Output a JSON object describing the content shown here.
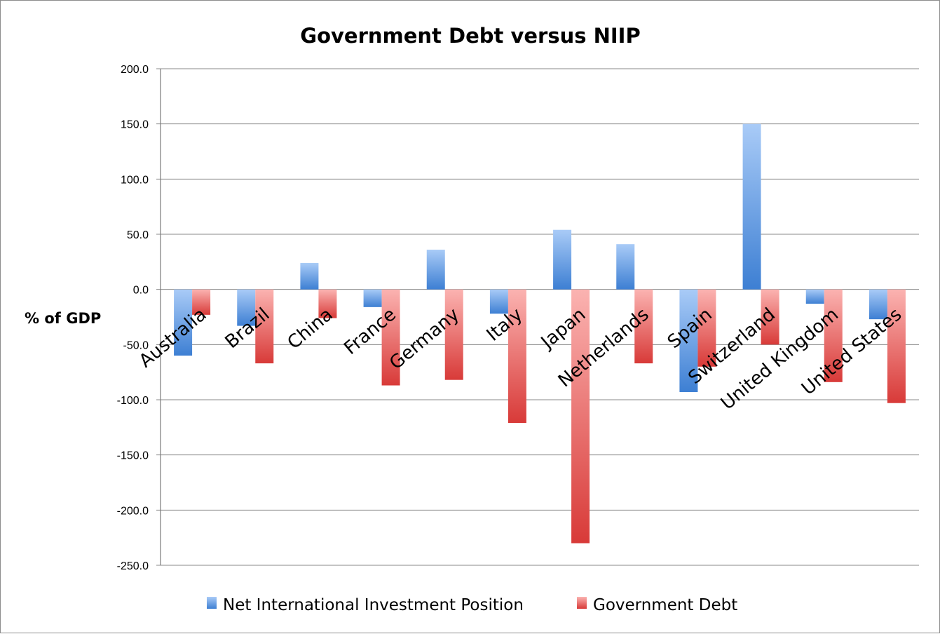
{
  "chart_data": {
    "type": "bar",
    "title": "Government Debt versus NIIP",
    "xlabel": "",
    "ylabel": "% of GDP",
    "ylim": [
      -250,
      200
    ],
    "yticks": [
      "200.0",
      "150.0",
      "100.0",
      "50.0",
      "0.0",
      "-50.0",
      "-100.0",
      "-150.0",
      "-200.0",
      "-250.0"
    ],
    "grid": true,
    "legend_position": "bottom",
    "categories": [
      "Australia",
      "Brazil",
      "China",
      "France",
      "Germany",
      "Italy",
      "Japan",
      "Netherlands",
      "Spain",
      "Switzerland",
      "United Kingdom",
      "United States"
    ],
    "series": [
      {
        "name": "Net International Investment Position",
        "color": "#4a86d4",
        "values": [
          -60,
          -33,
          24,
          -16,
          36,
          -22,
          54,
          41,
          -93,
          150,
          -13,
          -27
        ]
      },
      {
        "name": "Government Debt",
        "color": "#e04848",
        "values": [
          -23,
          -67,
          -26,
          -87,
          -82,
          -121,
          -230,
          -67,
          -70,
          -50,
          -84,
          -103
        ]
      }
    ]
  }
}
